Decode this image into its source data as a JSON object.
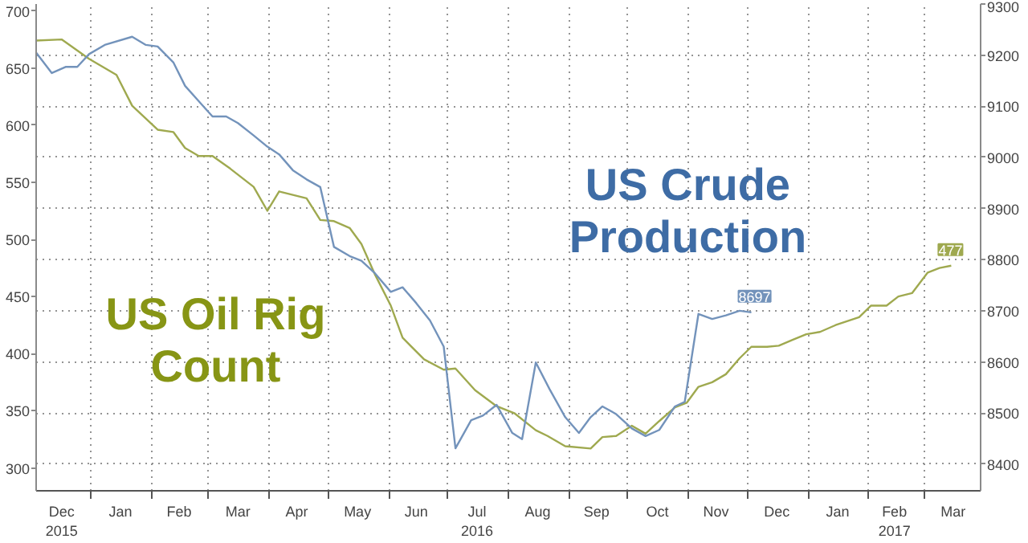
{
  "chart_data": {
    "type": "line",
    "xlim": [
      "2015-12-04",
      "2017-03-30"
    ],
    "xticks": [
      {
        "value": "2016-01-01",
        "label": null
      },
      {
        "value": "2016-02-01",
        "label": null
      },
      {
        "value": "2016-03-01",
        "label": null
      },
      {
        "value": "2016-04-01",
        "label": null
      },
      {
        "value": "2016-05-01",
        "label": null
      },
      {
        "value": "2016-06-01",
        "label": null
      },
      {
        "value": "2016-07-01",
        "label": null
      },
      {
        "value": "2016-08-01",
        "label": null
      },
      {
        "value": "2016-09-01",
        "label": null
      },
      {
        "value": "2016-10-01",
        "label": null
      },
      {
        "value": "2016-11-01",
        "label": null
      },
      {
        "value": "2016-12-01",
        "label": null
      },
      {
        "value": "2017-01-01",
        "label": null
      },
      {
        "value": "2017-02-01",
        "label": null
      },
      {
        "value": "2017-03-01",
        "label": null
      },
      {
        "value": "2015-12-17",
        "label": "Dec\n2015"
      },
      {
        "value": "2016-01-16",
        "label": "Jan"
      },
      {
        "value": "2016-02-15",
        "label": "Feb"
      },
      {
        "value": "2016-03-16",
        "label": "Mar"
      },
      {
        "value": "2016-04-15",
        "label": "Apr"
      },
      {
        "value": "2016-05-16",
        "label": "May"
      },
      {
        "value": "2016-06-15",
        "label": "Jun"
      },
      {
        "value": "2016-07-16",
        "label": "Jul\n2016"
      },
      {
        "value": "2016-08-16",
        "label": "Aug"
      },
      {
        "value": "2016-09-15",
        "label": "Sep"
      },
      {
        "value": "2016-10-16",
        "label": "Oct"
      },
      {
        "value": "2016-11-15",
        "label": "Nov"
      },
      {
        "value": "2016-12-16",
        "label": "Dec"
      },
      {
        "value": "2017-01-16",
        "label": "Jan"
      },
      {
        "value": "2017-02-14",
        "label": "Feb\n2017"
      },
      {
        "value": "2017-03-16",
        "label": "Mar"
      }
    ],
    "ylim": [
      280,
      706
    ],
    "yticks": [
      300,
      350,
      400,
      450,
      500,
      550,
      600,
      650,
      700
    ],
    "y2lim": [
      8348,
      9300
    ],
    "y2ticks": [
      8400,
      8500,
      8600,
      8700,
      8800,
      8900,
      9000,
      9100,
      9200,
      9300
    ],
    "grid": true,
    "series": [
      {
        "name": "US Oil Rig Count",
        "color": "#9fa94f",
        "x": [
          "2015-12-04",
          "2015-12-17",
          "2015-12-31",
          "2016-01-14",
          "2016-01-22",
          "2016-02-04",
          "2016-02-12",
          "2016-02-18",
          "2016-02-25",
          "2016-03-03",
          "2016-03-12",
          "2016-03-24",
          "2016-03-31",
          "2016-04-06",
          "2016-04-20",
          "2016-04-27",
          "2016-05-04",
          "2016-05-12",
          "2016-05-18",
          "2016-05-25",
          "2016-06-02",
          "2016-06-08",
          "2016-06-19",
          "2016-06-29",
          "2016-07-05",
          "2016-07-15",
          "2016-07-26",
          "2016-08-04",
          "2016-08-15",
          "2016-08-21",
          "2016-08-30",
          "2016-09-12",
          "2016-09-18",
          "2016-09-25",
          "2016-10-03",
          "2016-10-10",
          "2016-10-17",
          "2016-10-25",
          "2016-10-31",
          "2016-11-06",
          "2016-11-13",
          "2016-11-20",
          "2016-11-27",
          "2016-12-03",
          "2016-12-11",
          "2016-12-17",
          "2016-12-24",
          "2016-12-31",
          "2017-01-07",
          "2017-01-15",
          "2017-01-27",
          "2017-02-02",
          "2017-02-10",
          "2017-02-16",
          "2017-02-23",
          "2017-03-03",
          "2017-03-09",
          "2017-03-15"
        ],
        "values": [
          674,
          675,
          658,
          644,
          617,
          596,
          594,
          580,
          573,
          573,
          562,
          546,
          525,
          542,
          536,
          517,
          516,
          510,
          496,
          469,
          442,
          414,
          395,
          386,
          387,
          368,
          354,
          348,
          333,
          328,
          319,
          317,
          327,
          328,
          337,
          330,
          341,
          353,
          357,
          371,
          375,
          382,
          396,
          406,
          406,
          407,
          412,
          417,
          419,
          425,
          432,
          442,
          442,
          450,
          453,
          471,
          475,
          477
        ],
        "value_labels": [
          null,
          null,
          null,
          null,
          null,
          null,
          null,
          null,
          null,
          null,
          null,
          null,
          null,
          null,
          null,
          null,
          null,
          null,
          null,
          null,
          null,
          null,
          null,
          null,
          null,
          null,
          null,
          null,
          null,
          null,
          null,
          null,
          null,
          null,
          null,
          null,
          null,
          null,
          null,
          null,
          null,
          null,
          null,
          null,
          null,
          null,
          null,
          null,
          null,
          null,
          null,
          null,
          null,
          null,
          null,
          null,
          null,
          "477"
        ]
      },
      {
        "name": "US Crude Production",
        "color": "#7393bb",
        "axis": "y2",
        "x": [
          "2015-12-04",
          "2015-12-12",
          "2015-12-19",
          "2015-12-25",
          "2015-12-31",
          "2016-01-08",
          "2016-01-22",
          "2016-01-29",
          "2016-02-04",
          "2016-02-12",
          "2016-02-18",
          "2016-02-25",
          "2016-03-03",
          "2016-03-10",
          "2016-03-16",
          "2016-03-24",
          "2016-03-31",
          "2016-04-06",
          "2016-04-13",
          "2016-04-20",
          "2016-04-27",
          "2016-05-04",
          "2016-05-12",
          "2016-05-18",
          "2016-05-25",
          "2016-06-02",
          "2016-06-08",
          "2016-06-15",
          "2016-06-22",
          "2016-06-29",
          "2016-07-05",
          "2016-07-13",
          "2016-07-19",
          "2016-07-26",
          "2016-08-03",
          "2016-08-08",
          "2016-08-15",
          "2016-08-22",
          "2016-08-30",
          "2016-09-06",
          "2016-09-12",
          "2016-09-18",
          "2016-09-25",
          "2016-10-03",
          "2016-10-10",
          "2016-10-17",
          "2016-10-25",
          "2016-10-30",
          "2016-11-06",
          "2016-11-13",
          "2016-11-20",
          "2016-11-27",
          "2016-12-03"
        ],
        "values": [
          9205,
          9165,
          9177,
          9177,
          9202,
          9220,
          9236,
          9220,
          9217,
          9186,
          9140,
          9110,
          9080,
          9080,
          9067,
          9043,
          9021,
          9006,
          8975,
          8957,
          8942,
          8825,
          8807,
          8798,
          8773,
          8737,
          8746,
          8715,
          8681,
          8630,
          8431,
          8486,
          8495,
          8516,
          8461,
          8449,
          8599,
          8547,
          8492,
          8461,
          8492,
          8513,
          8498,
          8470,
          8455,
          8467,
          8513,
          8522,
          8694,
          8684,
          8691,
          8700,
          8697
        ],
        "value_labels": [
          null,
          null,
          null,
          null,
          null,
          null,
          null,
          null,
          null,
          null,
          null,
          null,
          null,
          null,
          null,
          null,
          null,
          null,
          null,
          null,
          null,
          null,
          null,
          null,
          null,
          null,
          null,
          null,
          null,
          null,
          null,
          null,
          null,
          null,
          null,
          null,
          null,
          null,
          null,
          null,
          null,
          null,
          null,
          null,
          null,
          null,
          null,
          null,
          null,
          null,
          null,
          null,
          "8697"
        ]
      }
    ]
  }
}
